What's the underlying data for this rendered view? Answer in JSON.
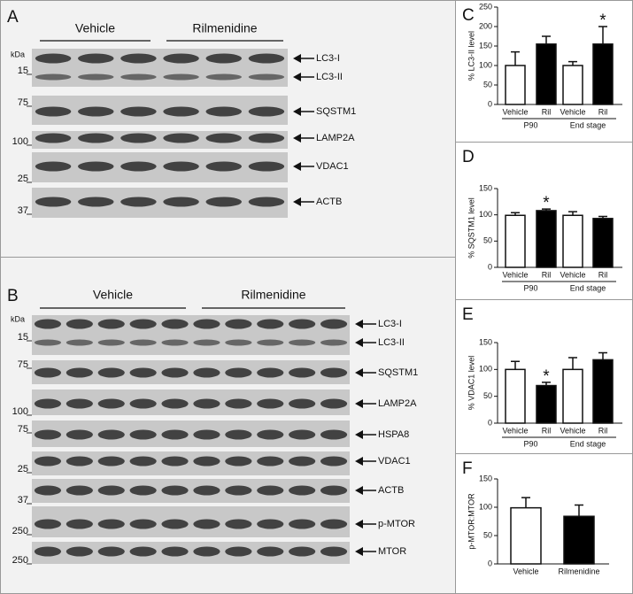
{
  "blots": [
    {
      "letter": "A",
      "groups": [
        "Vehicle",
        "Rilmenidine"
      ],
      "unit": "kDa",
      "rows": [
        {
          "markers": [
            "15"
          ],
          "labels": [
            "LC3-I",
            "LC3-II"
          ]
        },
        {
          "markers": [
            "75"
          ],
          "labels": [
            "SQSTM1"
          ]
        },
        {
          "markers": [
            "100"
          ],
          "labels": [
            "LAMP2A"
          ]
        },
        {
          "markers": [
            "25"
          ],
          "labels": [
            "VDAC1"
          ]
        },
        {
          "markers": [
            "37"
          ],
          "labels": [
            "ACTB"
          ]
        }
      ]
    },
    {
      "letter": "B",
      "groups": [
        "Vehicle",
        "Rilmenidine"
      ],
      "unit": "kDa",
      "rows": [
        {
          "markers": [
            "15"
          ],
          "labels": [
            "LC3-I",
            "LC3-II"
          ]
        },
        {
          "markers": [
            "75"
          ],
          "labels": [
            "SQSTM1"
          ]
        },
        {
          "markers": [
            "100"
          ],
          "labels": [
            "LAMP2A"
          ]
        },
        {
          "markers": [
            "75"
          ],
          "labels": [
            "HSPA8"
          ]
        },
        {
          "markers": [
            "25"
          ],
          "labels": [
            "VDAC1"
          ]
        },
        {
          "markers": [
            "37"
          ],
          "labels": [
            "ACTB"
          ]
        },
        {
          "markers": [
            "250"
          ],
          "labels": [
            "p-MTOR"
          ]
        },
        {
          "markers": [
            "250"
          ],
          "labels": [
            "MTOR"
          ]
        }
      ]
    }
  ],
  "chart_data": [
    {
      "type": "bar",
      "letter": "C",
      "y_label": "% LC3-II level",
      "categories": [
        "Vehicle",
        "Ril",
        "Vehicle",
        "Ril"
      ],
      "groups": [
        "P90",
        "End stage"
      ],
      "values": [
        100,
        155,
        100,
        155
      ],
      "errors": [
        35,
        20,
        10,
        45
      ],
      "colors": [
        "#ffffff",
        "#000000",
        "#ffffff",
        "#000000"
      ],
      "significance": [
        null,
        null,
        null,
        "*"
      ],
      "ylim": [
        0,
        250
      ],
      "yticks": [
        0,
        50,
        100,
        150,
        200,
        250
      ]
    },
    {
      "type": "bar",
      "letter": "D",
      "y_label": "% SQSTM1 level",
      "categories": [
        "Vehicle",
        "Ril",
        "Vehicle",
        "Ril"
      ],
      "groups": [
        "P90",
        "End stage"
      ],
      "values": [
        99,
        108,
        99,
        93
      ],
      "errors": [
        5,
        3,
        7,
        4
      ],
      "colors": [
        "#ffffff",
        "#000000",
        "#ffffff",
        "#000000"
      ],
      "significance": [
        null,
        "*",
        null,
        null
      ],
      "ylim": [
        0,
        150
      ],
      "yticks": [
        0,
        50,
        100,
        150
      ]
    },
    {
      "type": "bar",
      "letter": "E",
      "y_label": "% VDAC1 level",
      "categories": [
        "Vehicle",
        "Ril",
        "Vehicle",
        "Ril"
      ],
      "groups": [
        "P90",
        "End stage"
      ],
      "values": [
        100,
        70,
        100,
        118
      ],
      "errors": [
        15,
        6,
        22,
        13
      ],
      "colors": [
        "#ffffff",
        "#000000",
        "#ffffff",
        "#000000"
      ],
      "significance": [
        null,
        "*",
        null,
        null
      ],
      "ylim": [
        0,
        150
      ],
      "yticks": [
        0,
        50,
        100,
        150
      ]
    },
    {
      "type": "bar",
      "letter": "F",
      "y_label": "p-MTOR:MTOR",
      "categories": [
        "Vehicle",
        "Rilmenidine"
      ],
      "values": [
        99,
        84
      ],
      "errors": [
        18,
        20
      ],
      "colors": [
        "#ffffff",
        "#000000"
      ],
      "significance": [
        null,
        null
      ],
      "ylim": [
        0,
        150
      ],
      "yticks": [
        0,
        50,
        100,
        150
      ]
    }
  ]
}
